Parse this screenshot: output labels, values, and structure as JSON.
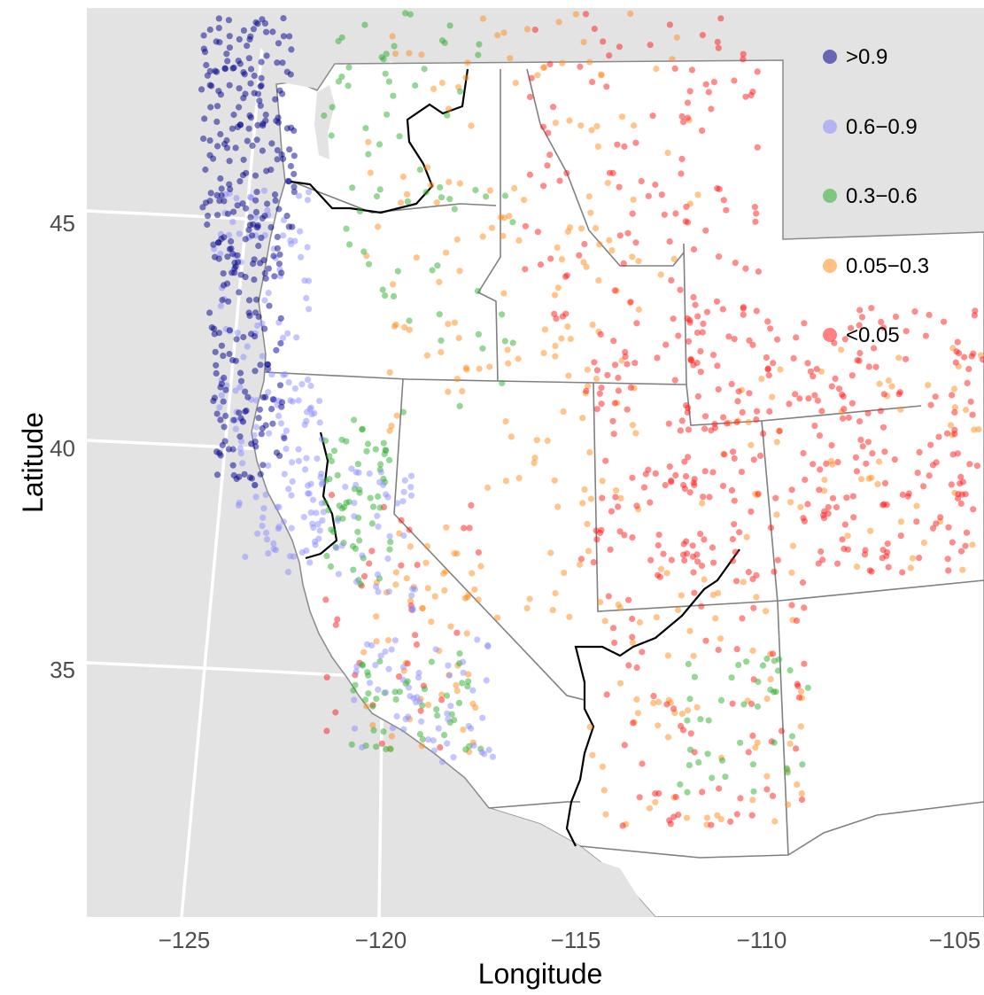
{
  "chart_data": {
    "type": "scatter",
    "title": "",
    "xlabel": "Longitude",
    "ylabel": "Latitude",
    "xlim": [
      -127.5,
      -104.8
    ],
    "ylim": [
      29.6,
      48.6
    ],
    "x_ticks": [
      "−125",
      "−120",
      "−115",
      "−110",
      "−105"
    ],
    "y_ticks": [
      "45",
      "40",
      "35"
    ],
    "legend": {
      "placement": "top-right",
      "entries": [
        {
          "label": ">0.9",
          "color": "#00008b"
        },
        {
          "label": "0.6−0.9",
          "color": "#8c8cff"
        },
        {
          "label": "0.3−0.6",
          "color": "#2eae2e"
        },
        {
          "label": "0.05−0.3",
          "color": "#ff8c1a"
        },
        {
          "label": "<0.05",
          "color": "#ff1a1a"
        }
      ]
    },
    "background": {
      "ocean": "#e3e3e3",
      "land": "#ffffff",
      "graticule": "#ffffff",
      "state_border": "#808080",
      "river": "#000000"
    },
    "clusters": [
      {
        "class": 0,
        "n": 170,
        "lon": [
          -124.6,
          -122.2
        ],
        "lat": [
          44.0,
          48.4
        ]
      },
      {
        "class": 0,
        "n": 140,
        "lon": [
          -124.4,
          -122.5
        ],
        "lat": [
          38.6,
          44.0
        ]
      },
      {
        "class": 1,
        "n": 80,
        "lon": [
          -124.3,
          -121.8
        ],
        "lat": [
          40.2,
          44.8
        ]
      },
      {
        "class": 1,
        "n": 90,
        "lon": [
          -123.8,
          -121.5
        ],
        "lat": [
          36.8,
          40.5
        ]
      },
      {
        "class": 1,
        "n": 60,
        "lon": [
          -120.8,
          -117.2
        ],
        "lat": [
          32.8,
          35.5
        ]
      },
      {
        "class": 1,
        "n": 40,
        "lon": [
          -121.2,
          -119.2
        ],
        "lat": [
          36.0,
          39.0
        ]
      },
      {
        "class": 2,
        "n": 60,
        "lon": [
          -121.5,
          -119.8
        ],
        "lat": [
          36.5,
          40.0
        ]
      },
      {
        "class": 2,
        "n": 45,
        "lon": [
          -120.8,
          -117.5
        ],
        "lat": [
          32.9,
          35.2
        ]
      },
      {
        "class": 2,
        "n": 40,
        "lon": [
          -121.5,
          -117.5
        ],
        "lat": [
          44.5,
          48.5
        ]
      },
      {
        "class": 2,
        "n": 40,
        "lon": [
          -112.5,
          -109.2
        ],
        "lat": [
          32.2,
          35.0
        ]
      },
      {
        "class": 2,
        "n": 30,
        "lon": [
          -121.0,
          -116.5
        ],
        "lat": [
          40.0,
          45.0
        ]
      },
      {
        "class": 3,
        "n": 110,
        "lon": [
          -120.5,
          -112.0
        ],
        "lat": [
          41.0,
          48.5
        ]
      },
      {
        "class": 3,
        "n": 80,
        "lon": [
          -120.0,
          -113.5
        ],
        "lat": [
          35.5,
          42.0
        ]
      },
      {
        "class": 3,
        "n": 70,
        "lon": [
          -114.8,
          -109.2
        ],
        "lat": [
          31.5,
          37.0
        ]
      },
      {
        "class": 3,
        "n": 60,
        "lon": [
          -112.0,
          -104.8
        ],
        "lat": [
          36.8,
          41.5
        ]
      },
      {
        "class": 3,
        "n": 40,
        "lon": [
          -120.5,
          -117.5
        ],
        "lat": [
          33.0,
          37.5
        ]
      },
      {
        "class": 4,
        "n": 260,
        "lon": [
          -112.5,
          -104.8
        ],
        "lat": [
          36.8,
          42.5
        ]
      },
      {
        "class": 4,
        "n": 110,
        "lon": [
          -116.5,
          -110.5
        ],
        "lat": [
          42.0,
          48.5
        ]
      },
      {
        "class": 4,
        "n": 70,
        "lon": [
          -115.0,
          -112.0
        ],
        "lat": [
          37.0,
          41.8
        ]
      },
      {
        "class": 4,
        "n": 70,
        "lon": [
          -114.5,
          -109.2
        ],
        "lat": [
          31.5,
          37.0
        ]
      },
      {
        "class": 4,
        "n": 35,
        "lon": [
          -121.5,
          -117.5
        ],
        "lat": [
          33.0,
          38.5
        ]
      }
    ]
  }
}
